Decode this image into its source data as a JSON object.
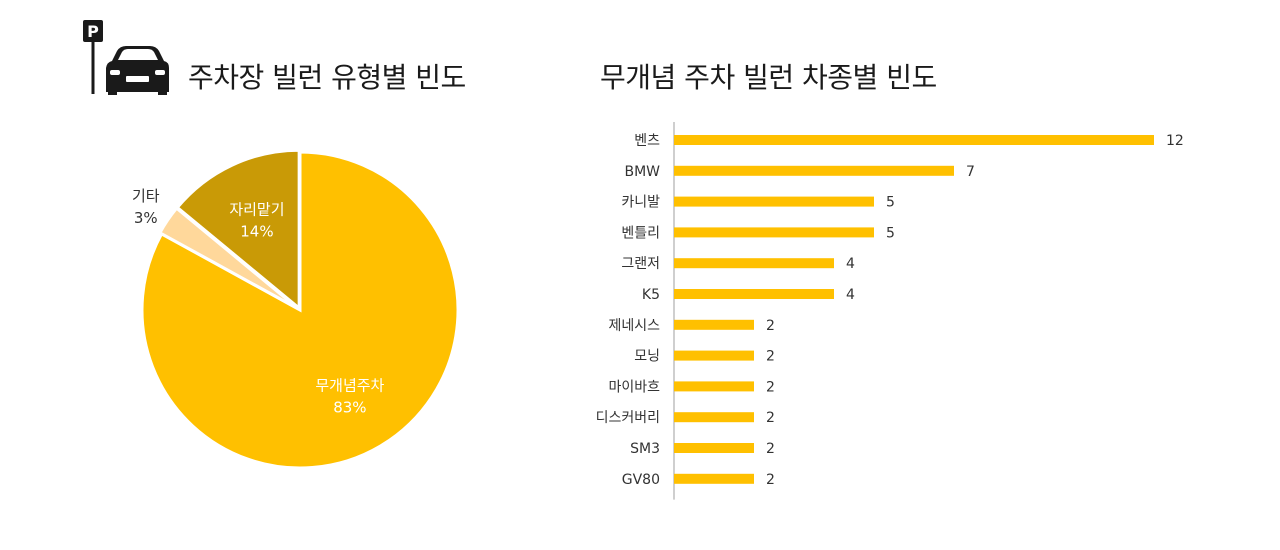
{
  "pie_title": "주차장 빌런 유형별 빈도",
  "bar_title": "무개념 주차 빌런 차종별 빈도",
  "icons": {
    "logo": "parking-sign-car-icon",
    "logo_letter": "P"
  },
  "colors": {
    "accent": "#FFC000",
    "dark_gold": "#C99A06",
    "light_peach": "#FFD89B",
    "text": "#1a1a1a",
    "axis": "#BFBFBF"
  },
  "chart_data": [
    {
      "type": "pie",
      "title": "주차장 빌런 유형별 빈도",
      "slices": [
        {
          "label": "무개념주차",
          "value": 83,
          "display": "83%",
          "color": "#FFC000"
        },
        {
          "label": "기타",
          "value": 3,
          "display": "3%",
          "color": "#FFD89B"
        },
        {
          "label": "자리맡기",
          "value": 14,
          "display": "14%",
          "color": "#C99A06"
        }
      ]
    },
    {
      "type": "bar",
      "orientation": "horizontal",
      "title": "무개념 주차 빌런 차종별 빈도",
      "categories": [
        "벤츠",
        "BMW",
        "카니발",
        "벤틀리",
        "그랜저",
        "K5",
        "제네시스",
        "모닝",
        "마이바흐",
        "디스커버리",
        "SM3",
        "GV80"
      ],
      "values": [
        12,
        7,
        5,
        5,
        4,
        4,
        2,
        2,
        2,
        2,
        2,
        2
      ],
      "color": "#FFC000",
      "xlim": [
        0,
        12
      ],
      "grid": false,
      "data_labels": true
    }
  ]
}
